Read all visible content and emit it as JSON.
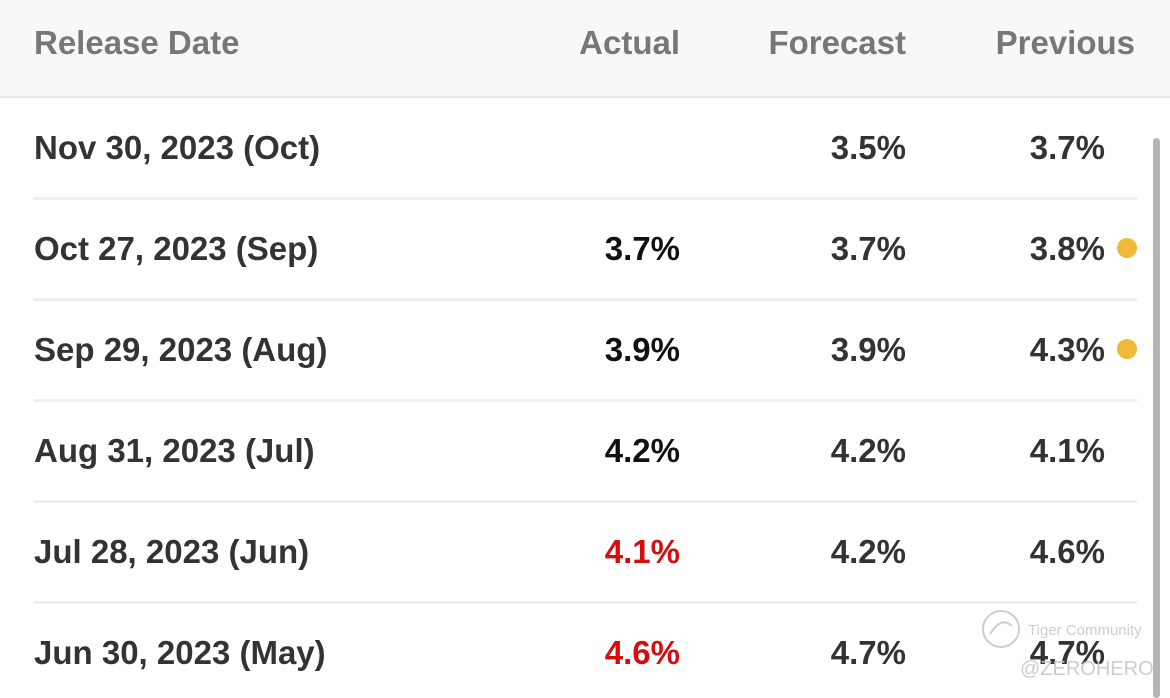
{
  "table": {
    "headers": [
      "Release Date",
      "Actual",
      "Forecast",
      "Previous"
    ],
    "rows": [
      {
        "date": "Nov 30, 2023 (Oct)",
        "actual": null,
        "forecast": "3.5%",
        "previous": "3.7%",
        "actual_color": "#111111",
        "revised": false
      },
      {
        "date": "Oct 27, 2023 (Sep)",
        "actual": "3.7%",
        "forecast": "3.7%",
        "previous": "3.8%",
        "actual_color": "#111111",
        "revised": true
      },
      {
        "date": "Sep 29, 2023 (Aug)",
        "actual": "3.9%",
        "forecast": "3.9%",
        "previous": "4.3%",
        "actual_color": "#111111",
        "revised": true
      },
      {
        "date": "Aug 31, 2023 (Jul)",
        "actual": "4.2%",
        "forecast": "4.2%",
        "previous": "4.1%",
        "actual_color": "#111111",
        "revised": false
      },
      {
        "date": "Jul 28, 2023 (Jun)",
        "actual": "4.1%",
        "forecast": "4.2%",
        "previous": "4.6%",
        "actual_color": "#d60d0d",
        "revised": false
      },
      {
        "date": "Jun 30, 2023 (May)",
        "actual": "4.6%",
        "forecast": "4.7%",
        "previous": "4.7%",
        "actual_color": "#d60d0d",
        "revised": false
      }
    ]
  },
  "watermark": {
    "brand": "Tiger Community",
    "handle": "@ZEROHERO"
  }
}
